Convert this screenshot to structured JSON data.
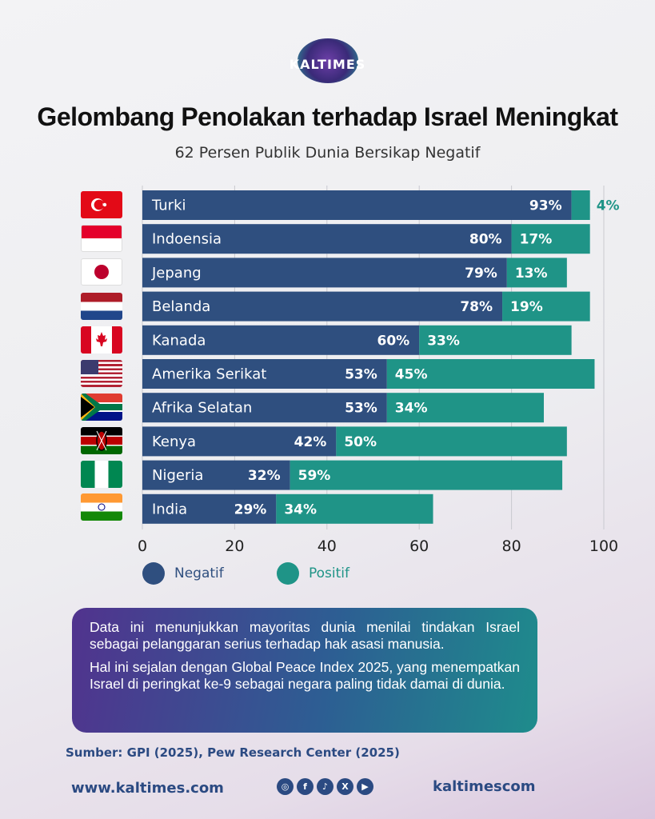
{
  "brand": {
    "logo_text": "KALTIMES"
  },
  "title": "Gelombang Penolakan terhadap Israel Meningkat",
  "subtitle": "62 Persen Publik Dunia Bersikap Negatif",
  "colors": {
    "negatif": "#2f4f7f",
    "positif": "#1f9487",
    "positif_label_outside": "#1f9487"
  },
  "flags": [
    {
      "country": "Turki",
      "icon": "turkey-flag-icon"
    },
    {
      "country": "Indoensia",
      "icon": "indonesia-flag-icon"
    },
    {
      "country": "Jepang",
      "icon": "japan-flag-icon"
    },
    {
      "country": "Belanda",
      "icon": "netherlands-flag-icon"
    },
    {
      "country": "Kanada",
      "icon": "canada-flag-icon"
    },
    {
      "country": "Amerika Serikat",
      "icon": "usa-flag-icon"
    },
    {
      "country": "Afrika Selatan",
      "icon": "south-africa-flag-icon"
    },
    {
      "country": "Kenya",
      "icon": "kenya-flag-icon"
    },
    {
      "country": "Nigeria",
      "icon": "nigeria-flag-icon"
    },
    {
      "country": "India",
      "icon": "india-flag-icon"
    }
  ],
  "chart_data": {
    "type": "bar",
    "orientation": "horizontal",
    "stacked": true,
    "categories": [
      "Turki",
      "Indoensia",
      "Jepang",
      "Belanda",
      "Kanada",
      "Amerika Serikat",
      "Afrika Selatan",
      "Kenya",
      "Nigeria",
      "India"
    ],
    "series": [
      {
        "name": "Negatif",
        "values": [
          93,
          80,
          79,
          78,
          60,
          53,
          53,
          42,
          32,
          29
        ],
        "labels": [
          "93%",
          "80%",
          "79%",
          "78%",
          "60%",
          "53%",
          "53%",
          "42%",
          "32%",
          "29%"
        ]
      },
      {
        "name": "Positif",
        "values": [
          4,
          17,
          13,
          19,
          33,
          45,
          34,
          50,
          59,
          34
        ],
        "labels": [
          "4%",
          "17%",
          "13%",
          "19%",
          "33%",
          "45%",
          "34%",
          "50%",
          "59%",
          "34%"
        ]
      }
    ],
    "xlim": [
      0,
      100
    ],
    "xticks": [
      "0",
      "20",
      "40",
      "60",
      "80",
      "100"
    ],
    "grid": true,
    "legend_position": "bottom"
  },
  "legend": {
    "negatif": "Negatif",
    "positif": "Positif"
  },
  "info": {
    "p1": "Data ini menunjukkan mayoritas dunia menilai tindakan Israel sebagai pelanggaran serius terhadap hak asasi manusia.",
    "p2": "Hal ini sejalan dengan Global Peace Index 2025, yang menempatkan Israel di peringkat ke-9 sebagai negara paling tidak damai di dunia."
  },
  "source": "Sumber: GPI (2025), Pew Research Center (2025)",
  "footer": {
    "url": "www.kaltimes.com",
    "handle": "kaltimescom",
    "social_icons": [
      "instagram-icon",
      "facebook-icon",
      "tiktok-icon",
      "x-icon",
      "youtube-icon"
    ]
  }
}
